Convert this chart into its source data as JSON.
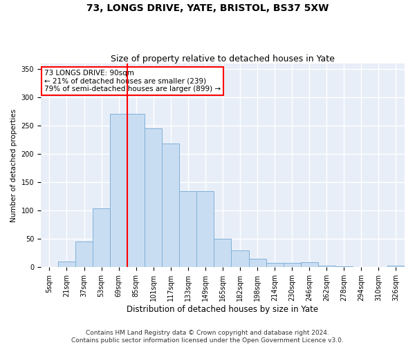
{
  "title": "73, LONGS DRIVE, YATE, BRISTOL, BS37 5XW",
  "subtitle": "Size of property relative to detached houses in Yate",
  "xlabel": "Distribution of detached houses by size in Yate",
  "ylabel": "Number of detached properties",
  "footer": "Contains HM Land Registry data © Crown copyright and database right 2024.\nContains public sector information licensed under the Open Government Licence v3.0.",
  "bar_labels": [
    "5sqm",
    "21sqm",
    "37sqm",
    "53sqm",
    "69sqm",
    "85sqm",
    "101sqm",
    "117sqm",
    "133sqm",
    "149sqm",
    "165sqm",
    "182sqm",
    "198sqm",
    "214sqm",
    "230sqm",
    "246sqm",
    "262sqm",
    "278sqm",
    "294sqm",
    "310sqm",
    "326sqm"
  ],
  "bar_values": [
    0,
    10,
    46,
    104,
    271,
    271,
    246,
    218,
    135,
    135,
    50,
    30,
    15,
    8,
    8,
    9,
    3,
    2,
    0,
    0,
    3
  ],
  "bar_color": "#c9ddf2",
  "bar_edge_color": "#7fb0d8",
  "vline_x": 5,
  "vline_color": "red",
  "annotation_text": "73 LONGS DRIVE: 90sqm\n← 21% of detached houses are smaller (239)\n79% of semi-detached houses are larger (899) →",
  "annotation_box_color": "white",
  "annotation_box_edge": "red",
  "ylim": [
    0,
    360
  ],
  "yticks": [
    0,
    50,
    100,
    150,
    200,
    250,
    300,
    350
  ],
  "background_color": "#e8eef8",
  "grid_color": "white",
  "title_fontsize": 10,
  "subtitle_fontsize": 9,
  "xlabel_fontsize": 8.5,
  "ylabel_fontsize": 7.5,
  "tick_fontsize": 7,
  "footer_fontsize": 6.5,
  "annotation_fontsize": 7.5
}
